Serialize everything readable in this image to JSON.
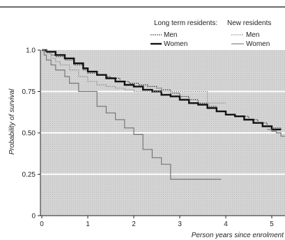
{
  "chart_data": {
    "type": "line",
    "title": "",
    "xlabel": "Person years since enrolment",
    "ylabel": "Probability of survival",
    "xlim": [
      0,
      5.4
    ],
    "ylim": [
      0,
      1.0
    ],
    "x_ticks": [
      "0",
      "1",
      "2",
      "3",
      "4",
      "5"
    ],
    "y_ticks": [
      "0",
      "0.25",
      "0.50",
      "0.75",
      "1.0"
    ],
    "y_tick_values": [
      0,
      0.25,
      0.5,
      0.75,
      1.0
    ],
    "gridlines": "horizontal",
    "legend_position": "top-right",
    "legend": {
      "group_long": "Long term residents:",
      "group_new": "New residents",
      "long_men": "Men",
      "long_women": "Women",
      "new_men": "Men",
      "new_women": "Women"
    },
    "series": [
      {
        "group": "long",
        "name": "Men",
        "style": "dotted",
        "color": "#333333",
        "x": [
          0,
          0.1,
          0.2,
          0.3,
          0.5,
          0.7,
          0.9,
          1.0,
          1.2,
          1.4,
          1.5,
          1.7,
          1.9,
          2.1,
          2.3,
          2.5,
          2.6,
          2.8,
          3.0,
          3.2,
          3.4,
          3.6,
          3.8,
          4.0,
          4.2,
          4.5,
          4.7,
          4.9,
          5.0,
          5.2
        ],
        "y": [
          1.0,
          0.99,
          0.97,
          0.96,
          0.94,
          0.91,
          0.88,
          0.86,
          0.85,
          0.84,
          0.83,
          0.81,
          0.8,
          0.79,
          0.78,
          0.77,
          0.76,
          0.74,
          0.72,
          0.7,
          0.68,
          0.66,
          0.63,
          0.61,
          0.6,
          0.58,
          0.56,
          0.54,
          0.53,
          0.52
        ]
      },
      {
        "group": "long",
        "name": "Women",
        "style": "solid-bold",
        "color": "#111111",
        "x": [
          0,
          0.1,
          0.3,
          0.5,
          0.7,
          0.9,
          1.0,
          1.2,
          1.4,
          1.6,
          1.8,
          2.0,
          2.2,
          2.4,
          2.6,
          2.8,
          3.0,
          3.2,
          3.4,
          3.6,
          3.8,
          4.0,
          4.2,
          4.4,
          4.6,
          4.8,
          5.0,
          5.2
        ],
        "y": [
          1.0,
          0.99,
          0.97,
          0.95,
          0.92,
          0.89,
          0.87,
          0.85,
          0.83,
          0.81,
          0.79,
          0.78,
          0.76,
          0.75,
          0.73,
          0.72,
          0.7,
          0.68,
          0.67,
          0.65,
          0.63,
          0.61,
          0.6,
          0.58,
          0.56,
          0.54,
          0.52,
          0.52
        ]
      },
      {
        "group": "new",
        "name": "Men",
        "style": "dotted-light",
        "color": "#888888",
        "x": [
          0,
          0.1,
          0.2,
          0.3,
          0.4,
          0.6,
          0.8,
          1.0,
          1.2,
          1.4,
          1.6,
          1.8,
          2.0,
          2.2,
          2.4,
          2.8,
          3.2,
          3.5,
          3.6,
          4.0
        ],
        "y": [
          1.0,
          0.98,
          0.95,
          0.93,
          0.91,
          0.88,
          0.84,
          0.81,
          0.79,
          0.78,
          0.77,
          0.76,
          0.75,
          0.75,
          0.75,
          0.75,
          0.75,
          0.75,
          0.68,
          0.68
        ]
      },
      {
        "group": "new",
        "name": "Women",
        "style": "solid-light",
        "color": "#777777",
        "x": [
          0,
          0.05,
          0.1,
          0.2,
          0.3,
          0.5,
          0.6,
          0.8,
          1.0,
          1.2,
          1.4,
          1.6,
          1.8,
          2.0,
          2.2,
          2.4,
          2.6,
          2.8,
          3.2,
          3.6,
          3.9
        ],
        "y": [
          1.0,
          0.97,
          0.94,
          0.91,
          0.88,
          0.84,
          0.8,
          0.75,
          0.75,
          0.66,
          0.62,
          0.58,
          0.53,
          0.49,
          0.4,
          0.35,
          0.31,
          0.22,
          0.22,
          0.22,
          0.22
        ]
      },
      {
        "group": "new",
        "name": "Women",
        "style": "solid-light",
        "color": "#777777",
        "x": [
          4.9,
          5.0,
          5.1,
          5.2,
          5.4
        ],
        "y": [
          0.52,
          0.51,
          0.5,
          0.48,
          0.48
        ]
      }
    ]
  }
}
